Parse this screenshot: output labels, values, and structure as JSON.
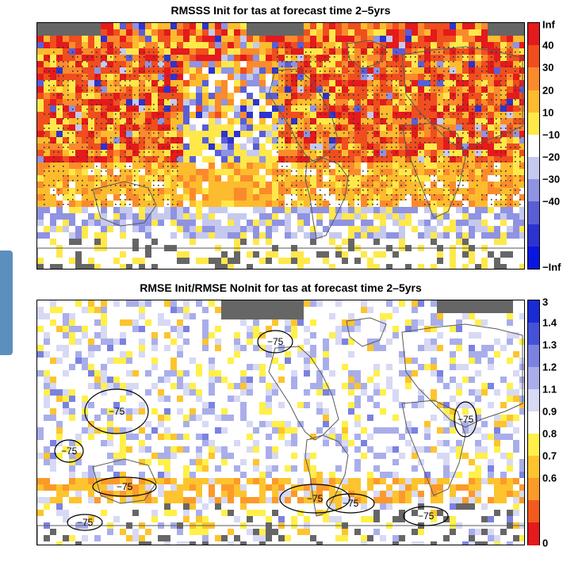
{
  "chart_data": [
    {
      "type": "heatmap",
      "title": "RMSSS Init for tas at forecast time 2–5yrs",
      "projection": "global map",
      "stippling": "dots over most of the northern and tropical land/ocean areas",
      "colorbar": {
        "labels": [
          "Inf",
          "40",
          "30",
          "20",
          "10",
          "−10",
          "−20",
          "−30",
          "−40",
          "−Inf"
        ],
        "colors": [
          "#e41a1c",
          "#f04e1e",
          "#fb8a2c",
          "#fdbb2e",
          "#ffe84a",
          "#ffffff",
          "#c6c9ee",
          "#8f93e2",
          "#5a5ed6",
          "#2d33d0",
          "#0a16e0"
        ]
      }
    },
    {
      "type": "heatmap",
      "title": "RMSE Init/RMSE NoInit for tas at forecast time 2–5yrs",
      "projection": "global map",
      "contour_labels": [
        "−75",
        "−75",
        "−75",
        "−75",
        "−75",
        "−75",
        "−75",
        "−75",
        "−75"
      ],
      "colorbar": {
        "labels": [
          "3",
          "1.4",
          "1.3",
          "1.2",
          "1.1",
          "0.9",
          "0.8",
          "0.7",
          "0.6",
          "0"
        ],
        "colors": [
          "#1a2bd4",
          "#4552d8",
          "#7b82e0",
          "#a9aeea",
          "#d7d9f5",
          "#ffffff",
          "#fff04a",
          "#fdc42e",
          "#fb9a2a",
          "#f25a1e",
          "#e41a1c"
        ]
      }
    }
  ]
}
